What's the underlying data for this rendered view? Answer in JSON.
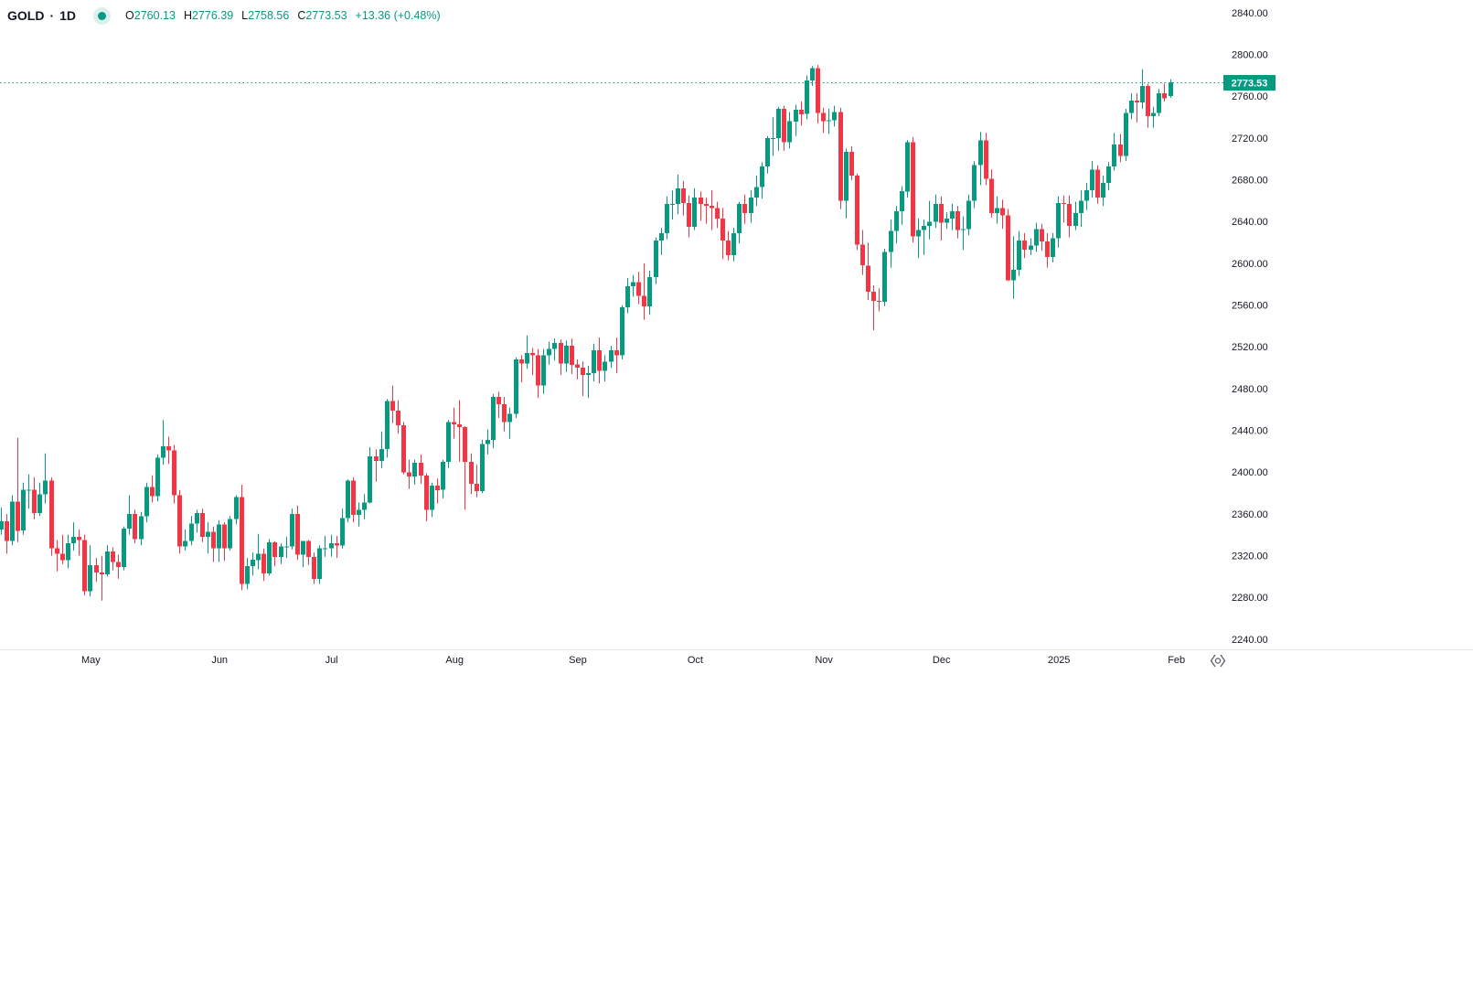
{
  "header": {
    "symbol": "GOLD",
    "separator": "·",
    "interval": "1D",
    "ohlc": {
      "open_label": "O",
      "open": "2760.13",
      "high_label": "H",
      "high": "2776.39",
      "low_label": "L",
      "low": "2758.56",
      "close_label": "C",
      "close": "2773.53",
      "change": "+13.36 (+0.48%)"
    }
  },
  "price_scale": {
    "current_price_label": "2773.53"
  },
  "colors": {
    "up": "#089981",
    "down": "#F23645",
    "text": "#131722",
    "axis_border": "#e0e3eb",
    "current_price_line": "#089981",
    "current_price_bg": "#089981",
    "current_price_text": "#ffffff",
    "icon": "#5d606b"
  },
  "chart_data": {
    "type": "candlestick",
    "title": "GOLD 1D candlestick chart",
    "last_price": 2773.53,
    "y_axis": {
      "min": 2240,
      "max": 2840,
      "tick_step": 40,
      "ticks": [
        "2840.00",
        "2800.00",
        "2760.00",
        "2720.00",
        "2680.00",
        "2640.00",
        "2600.00",
        "2560.00",
        "2520.00",
        "2480.00",
        "2440.00",
        "2400.00",
        "2360.00",
        "2320.00",
        "2280.00",
        "2240.00"
      ]
    },
    "x_axis": {
      "ticks": [
        {
          "label": "May",
          "day": 16
        },
        {
          "label": "Jun",
          "day": 39
        },
        {
          "label": "Jul",
          "day": 59
        },
        {
          "label": "Aug",
          "day": 81
        },
        {
          "label": "Sep",
          "day": 103
        },
        {
          "label": "Oct",
          "day": 124
        },
        {
          "label": "Nov",
          "day": 147
        },
        {
          "label": "Dec",
          "day": 168
        },
        {
          "label": "2025",
          "day": 189
        },
        {
          "label": "Feb",
          "day": 210
        }
      ]
    },
    "candles": [
      [
        2345,
        2366,
        2340,
        2353
      ],
      [
        2353,
        2360,
        2322,
        2334
      ],
      [
        2334,
        2378,
        2330,
        2372
      ],
      [
        2372,
        2433,
        2333,
        2344
      ],
      [
        2344,
        2390,
        2340,
        2383
      ],
      [
        2383,
        2398,
        2365,
        2383
      ],
      [
        2383,
        2395,
        2355,
        2361
      ],
      [
        2361,
        2390,
        2358,
        2379
      ],
      [
        2379,
        2418,
        2370,
        2392
      ],
      [
        2392,
        2395,
        2320,
        2327
      ],
      [
        2327,
        2335,
        2305,
        2322
      ],
      [
        2322,
        2340,
        2312,
        2316
      ],
      [
        2316,
        2340,
        2308,
        2332
      ],
      [
        2332,
        2352,
        2325,
        2338
      ],
      [
        2338,
        2345,
        2320,
        2335
      ],
      [
        2335,
        2340,
        2282,
        2286
      ],
      [
        2286,
        2330,
        2281,
        2311
      ],
      [
        2311,
        2318,
        2295,
        2304
      ],
      [
        2304,
        2320,
        2277,
        2302
      ],
      [
        2302,
        2330,
        2300,
        2324
      ],
      [
        2324,
        2328,
        2306,
        2314
      ],
      [
        2314,
        2321,
        2298,
        2309
      ],
      [
        2309,
        2348,
        2306,
        2346
      ],
      [
        2346,
        2378,
        2340,
        2360
      ],
      [
        2360,
        2364,
        2332,
        2336
      ],
      [
        2336,
        2362,
        2330,
        2358
      ],
      [
        2358,
        2390,
        2352,
        2386
      ],
      [
        2386,
        2397,
        2371,
        2377
      ],
      [
        2377,
        2417,
        2372,
        2414
      ],
      [
        2414,
        2450,
        2407,
        2425
      ],
      [
        2425,
        2434,
        2408,
        2421
      ],
      [
        2421,
        2426,
        2370,
        2378
      ],
      [
        2378,
        2383,
        2322,
        2329
      ],
      [
        2329,
        2345,
        2325,
        2334
      ],
      [
        2334,
        2358,
        2330,
        2351
      ],
      [
        2351,
        2364,
        2342,
        2361
      ],
      [
        2361,
        2365,
        2333,
        2338
      ],
      [
        2338,
        2352,
        2322,
        2343
      ],
      [
        2343,
        2348,
        2314,
        2327
      ],
      [
        2327,
        2354,
        2314,
        2350
      ],
      [
        2350,
        2352,
        2315,
        2327
      ],
      [
        2327,
        2358,
        2325,
        2355
      ],
      [
        2355,
        2378,
        2350,
        2376
      ],
      [
        2376,
        2388,
        2287,
        2293
      ],
      [
        2293,
        2318,
        2288,
        2310
      ],
      [
        2310,
        2323,
        2301,
        2316
      ],
      [
        2316,
        2341,
        2307,
        2322
      ],
      [
        2322,
        2327,
        2296,
        2303
      ],
      [
        2303,
        2336,
        2301,
        2333
      ],
      [
        2333,
        2334,
        2310,
        2319
      ],
      [
        2319,
        2332,
        2312,
        2329
      ],
      [
        2329,
        2338,
        2318,
        2329
      ],
      [
        2329,
        2365,
        2326,
        2360
      ],
      [
        2360,
        2368,
        2316,
        2321
      ],
      [
        2321,
        2334,
        2309,
        2334
      ],
      [
        2334,
        2335,
        2311,
        2319
      ],
      [
        2319,
        2323,
        2293,
        2298
      ],
      [
        2298,
        2330,
        2293,
        2327
      ],
      [
        2327,
        2339,
        2319,
        2327
      ],
      [
        2327,
        2340,
        2319,
        2332
      ],
      [
        2332,
        2339,
        2318,
        2330
      ],
      [
        2330,
        2365,
        2327,
        2356
      ],
      [
        2356,
        2393,
        2352,
        2392
      ],
      [
        2392,
        2395,
        2352,
        2359
      ],
      [
        2359,
        2371,
        2348,
        2364
      ],
      [
        2364,
        2379,
        2355,
        2371
      ],
      [
        2371,
        2424,
        2370,
        2415
      ],
      [
        2415,
        2422,
        2391,
        2411
      ],
      [
        2411,
        2439,
        2404,
        2422
      ],
      [
        2422,
        2470,
        2414,
        2468
      ],
      [
        2468,
        2483,
        2447,
        2459
      ],
      [
        2459,
        2469,
        2437,
        2445
      ],
      [
        2445,
        2448,
        2398,
        2400
      ],
      [
        2400,
        2412,
        2384,
        2396
      ],
      [
        2396,
        2412,
        2388,
        2409
      ],
      [
        2409,
        2417,
        2389,
        2397
      ],
      [
        2397,
        2399,
        2353,
        2364
      ],
      [
        2364,
        2390,
        2357,
        2387
      ],
      [
        2387,
        2394,
        2370,
        2383
      ],
      [
        2383,
        2412,
        2375,
        2410
      ],
      [
        2410,
        2450,
        2404,
        2448
      ],
      [
        2448,
        2462,
        2432,
        2446
      ],
      [
        2446,
        2469,
        2410,
        2443
      ],
      [
        2443,
        2444,
        2364,
        2410
      ],
      [
        2410,
        2418,
        2379,
        2389
      ],
      [
        2389,
        2407,
        2376,
        2382
      ],
      [
        2382,
        2431,
        2380,
        2427
      ],
      [
        2427,
        2441,
        2417,
        2431
      ],
      [
        2431,
        2475,
        2423,
        2472
      ],
      [
        2472,
        2477,
        2452,
        2465
      ],
      [
        2465,
        2472,
        2439,
        2448
      ],
      [
        2448,
        2462,
        2432,
        2456
      ],
      [
        2456,
        2510,
        2452,
        2508
      ],
      [
        2508,
        2512,
        2486,
        2504
      ],
      [
        2504,
        2531,
        2499,
        2514
      ],
      [
        2514,
        2519,
        2493,
        2512
      ],
      [
        2512,
        2518,
        2471,
        2483
      ],
      [
        2483,
        2518,
        2475,
        2512
      ],
      [
        2512,
        2525,
        2503,
        2518
      ],
      [
        2518,
        2528,
        2507,
        2524
      ],
      [
        2524,
        2527,
        2493,
        2504
      ],
      [
        2504,
        2526,
        2496,
        2521
      ],
      [
        2521,
        2528,
        2494,
        2503
      ],
      [
        2503,
        2508,
        2489,
        2500
      ],
      [
        2500,
        2506,
        2473,
        2493
      ],
      [
        2493,
        2502,
        2471,
        2495
      ],
      [
        2495,
        2523,
        2487,
        2517
      ],
      [
        2517,
        2529,
        2485,
        2497
      ],
      [
        2497,
        2512,
        2487,
        2506
      ],
      [
        2506,
        2521,
        2500,
        2517
      ],
      [
        2517,
        2529,
        2495,
        2512
      ],
      [
        2512,
        2560,
        2508,
        2558
      ],
      [
        2558,
        2586,
        2552,
        2578
      ],
      [
        2578,
        2589,
        2568,
        2582
      ],
      [
        2582,
        2592,
        2561,
        2569
      ],
      [
        2569,
        2600,
        2546,
        2559
      ],
      [
        2559,
        2593,
        2551,
        2587
      ],
      [
        2587,
        2625,
        2580,
        2622
      ],
      [
        2622,
        2634,
        2608,
        2629
      ],
      [
        2629,
        2664,
        2623,
        2657
      ],
      [
        2657,
        2670,
        2642,
        2657
      ],
      [
        2657,
        2685,
        2647,
        2672
      ],
      [
        2672,
        2679,
        2646,
        2658
      ],
      [
        2658,
        2665,
        2625,
        2635
      ],
      [
        2635,
        2672,
        2632,
        2663
      ],
      [
        2663,
        2669,
        2641,
        2657
      ],
      [
        2657,
        2663,
        2638,
        2655
      ],
      [
        2655,
        2670,
        2632,
        2653
      ],
      [
        2653,
        2659,
        2634,
        2643
      ],
      [
        2643,
        2653,
        2604,
        2622
      ],
      [
        2622,
        2631,
        2603,
        2608
      ],
      [
        2608,
        2634,
        2602,
        2629
      ],
      [
        2629,
        2659,
        2619,
        2657
      ],
      [
        2657,
        2666,
        2638,
        2648
      ],
      [
        2648,
        2670,
        2639,
        2663
      ],
      [
        2663,
        2684,
        2655,
        2673
      ],
      [
        2673,
        2697,
        2662,
        2693
      ],
      [
        2693,
        2722,
        2686,
        2720
      ],
      [
        2720,
        2740,
        2703,
        2720
      ],
      [
        2720,
        2750,
        2708,
        2748
      ],
      [
        2748,
        2751,
        2708,
        2716
      ],
      [
        2716,
        2745,
        2710,
        2736
      ],
      [
        2736,
        2752,
        2722,
        2747
      ],
      [
        2747,
        2755,
        2732,
        2743
      ],
      [
        2743,
        2780,
        2738,
        2775
      ],
      [
        2775,
        2789,
        2770,
        2787
      ],
      [
        2787,
        2790,
        2734,
        2744
      ],
      [
        2744,
        2749,
        2725,
        2736
      ],
      [
        2736,
        2748,
        2724,
        2737
      ],
      [
        2737,
        2751,
        2731,
        2745
      ],
      [
        2745,
        2749,
        2652,
        2660
      ],
      [
        2660,
        2710,
        2643,
        2707
      ],
      [
        2707,
        2712,
        2680,
        2684
      ],
      [
        2684,
        2686,
        2613,
        2618
      ],
      [
        2618,
        2632,
        2589,
        2598
      ],
      [
        2598,
        2620,
        2565,
        2573
      ],
      [
        2573,
        2579,
        2536,
        2564
      ],
      [
        2564,
        2576,
        2554,
        2563
      ],
      [
        2563,
        2614,
        2559,
        2611
      ],
      [
        2611,
        2642,
        2596,
        2631
      ],
      [
        2631,
        2655,
        2619,
        2650
      ],
      [
        2650,
        2674,
        2637,
        2669
      ],
      [
        2669,
        2718,
        2663,
        2716
      ],
      [
        2716,
        2721,
        2620,
        2626
      ],
      [
        2626,
        2643,
        2605,
        2632
      ],
      [
        2632,
        2642,
        2608,
        2636
      ],
      [
        2636,
        2660,
        2623,
        2640
      ],
      [
        2640,
        2666,
        2634,
        2657
      ],
      [
        2657,
        2664,
        2622,
        2639
      ],
      [
        2639,
        2649,
        2633,
        2643
      ],
      [
        2643,
        2657,
        2632,
        2650
      ],
      [
        2650,
        2655,
        2624,
        2632
      ],
      [
        2632,
        2645,
        2613,
        2633
      ],
      [
        2633,
        2666,
        2627,
        2660
      ],
      [
        2660,
        2698,
        2653,
        2694
      ],
      [
        2694,
        2726,
        2675,
        2718
      ],
      [
        2718,
        2725,
        2675,
        2681
      ],
      [
        2681,
        2690,
        2644,
        2648
      ],
      [
        2648,
        2664,
        2638,
        2653
      ],
      [
        2653,
        2661,
        2633,
        2646
      ],
      [
        2646,
        2652,
        2583,
        2584
      ],
      [
        2584,
        2626,
        2566,
        2594
      ],
      [
        2594,
        2631,
        2588,
        2622
      ],
      [
        2622,
        2629,
        2605,
        2613
      ],
      [
        2613,
        2624,
        2608,
        2617
      ],
      [
        2617,
        2639,
        2611,
        2633
      ],
      [
        2633,
        2638,
        2612,
        2621
      ],
      [
        2621,
        2629,
        2596,
        2606
      ],
      [
        2606,
        2629,
        2601,
        2624
      ],
      [
        2624,
        2664,
        2615,
        2658
      ],
      [
        2658,
        2665,
        2639,
        2657
      ],
      [
        2657,
        2665,
        2625,
        2636
      ],
      [
        2636,
        2659,
        2632,
        2648
      ],
      [
        2648,
        2670,
        2635,
        2660
      ],
      [
        2660,
        2677,
        2651,
        2670
      ],
      [
        2670,
        2698,
        2663,
        2690
      ],
      [
        2690,
        2694,
        2657,
        2663
      ],
      [
        2663,
        2684,
        2655,
        2677
      ],
      [
        2677,
        2697,
        2670,
        2693
      ],
      [
        2693,
        2725,
        2689,
        2714
      ],
      [
        2714,
        2724,
        2697,
        2703
      ],
      [
        2703,
        2748,
        2698,
        2744
      ],
      [
        2744,
        2763,
        2738,
        2756
      ],
      [
        2756,
        2763,
        2735,
        2754
      ],
      [
        2754,
        2786,
        2748,
        2770
      ],
      [
        2770,
        2772,
        2730,
        2741
      ],
      [
        2741,
        2750,
        2730,
        2744
      ],
      [
        2744,
        2767,
        2741,
        2763
      ],
      [
        2763,
        2772,
        2755,
        2758
      ],
      [
        2760.13,
        2776.39,
        2758.56,
        2773.53
      ]
    ]
  }
}
